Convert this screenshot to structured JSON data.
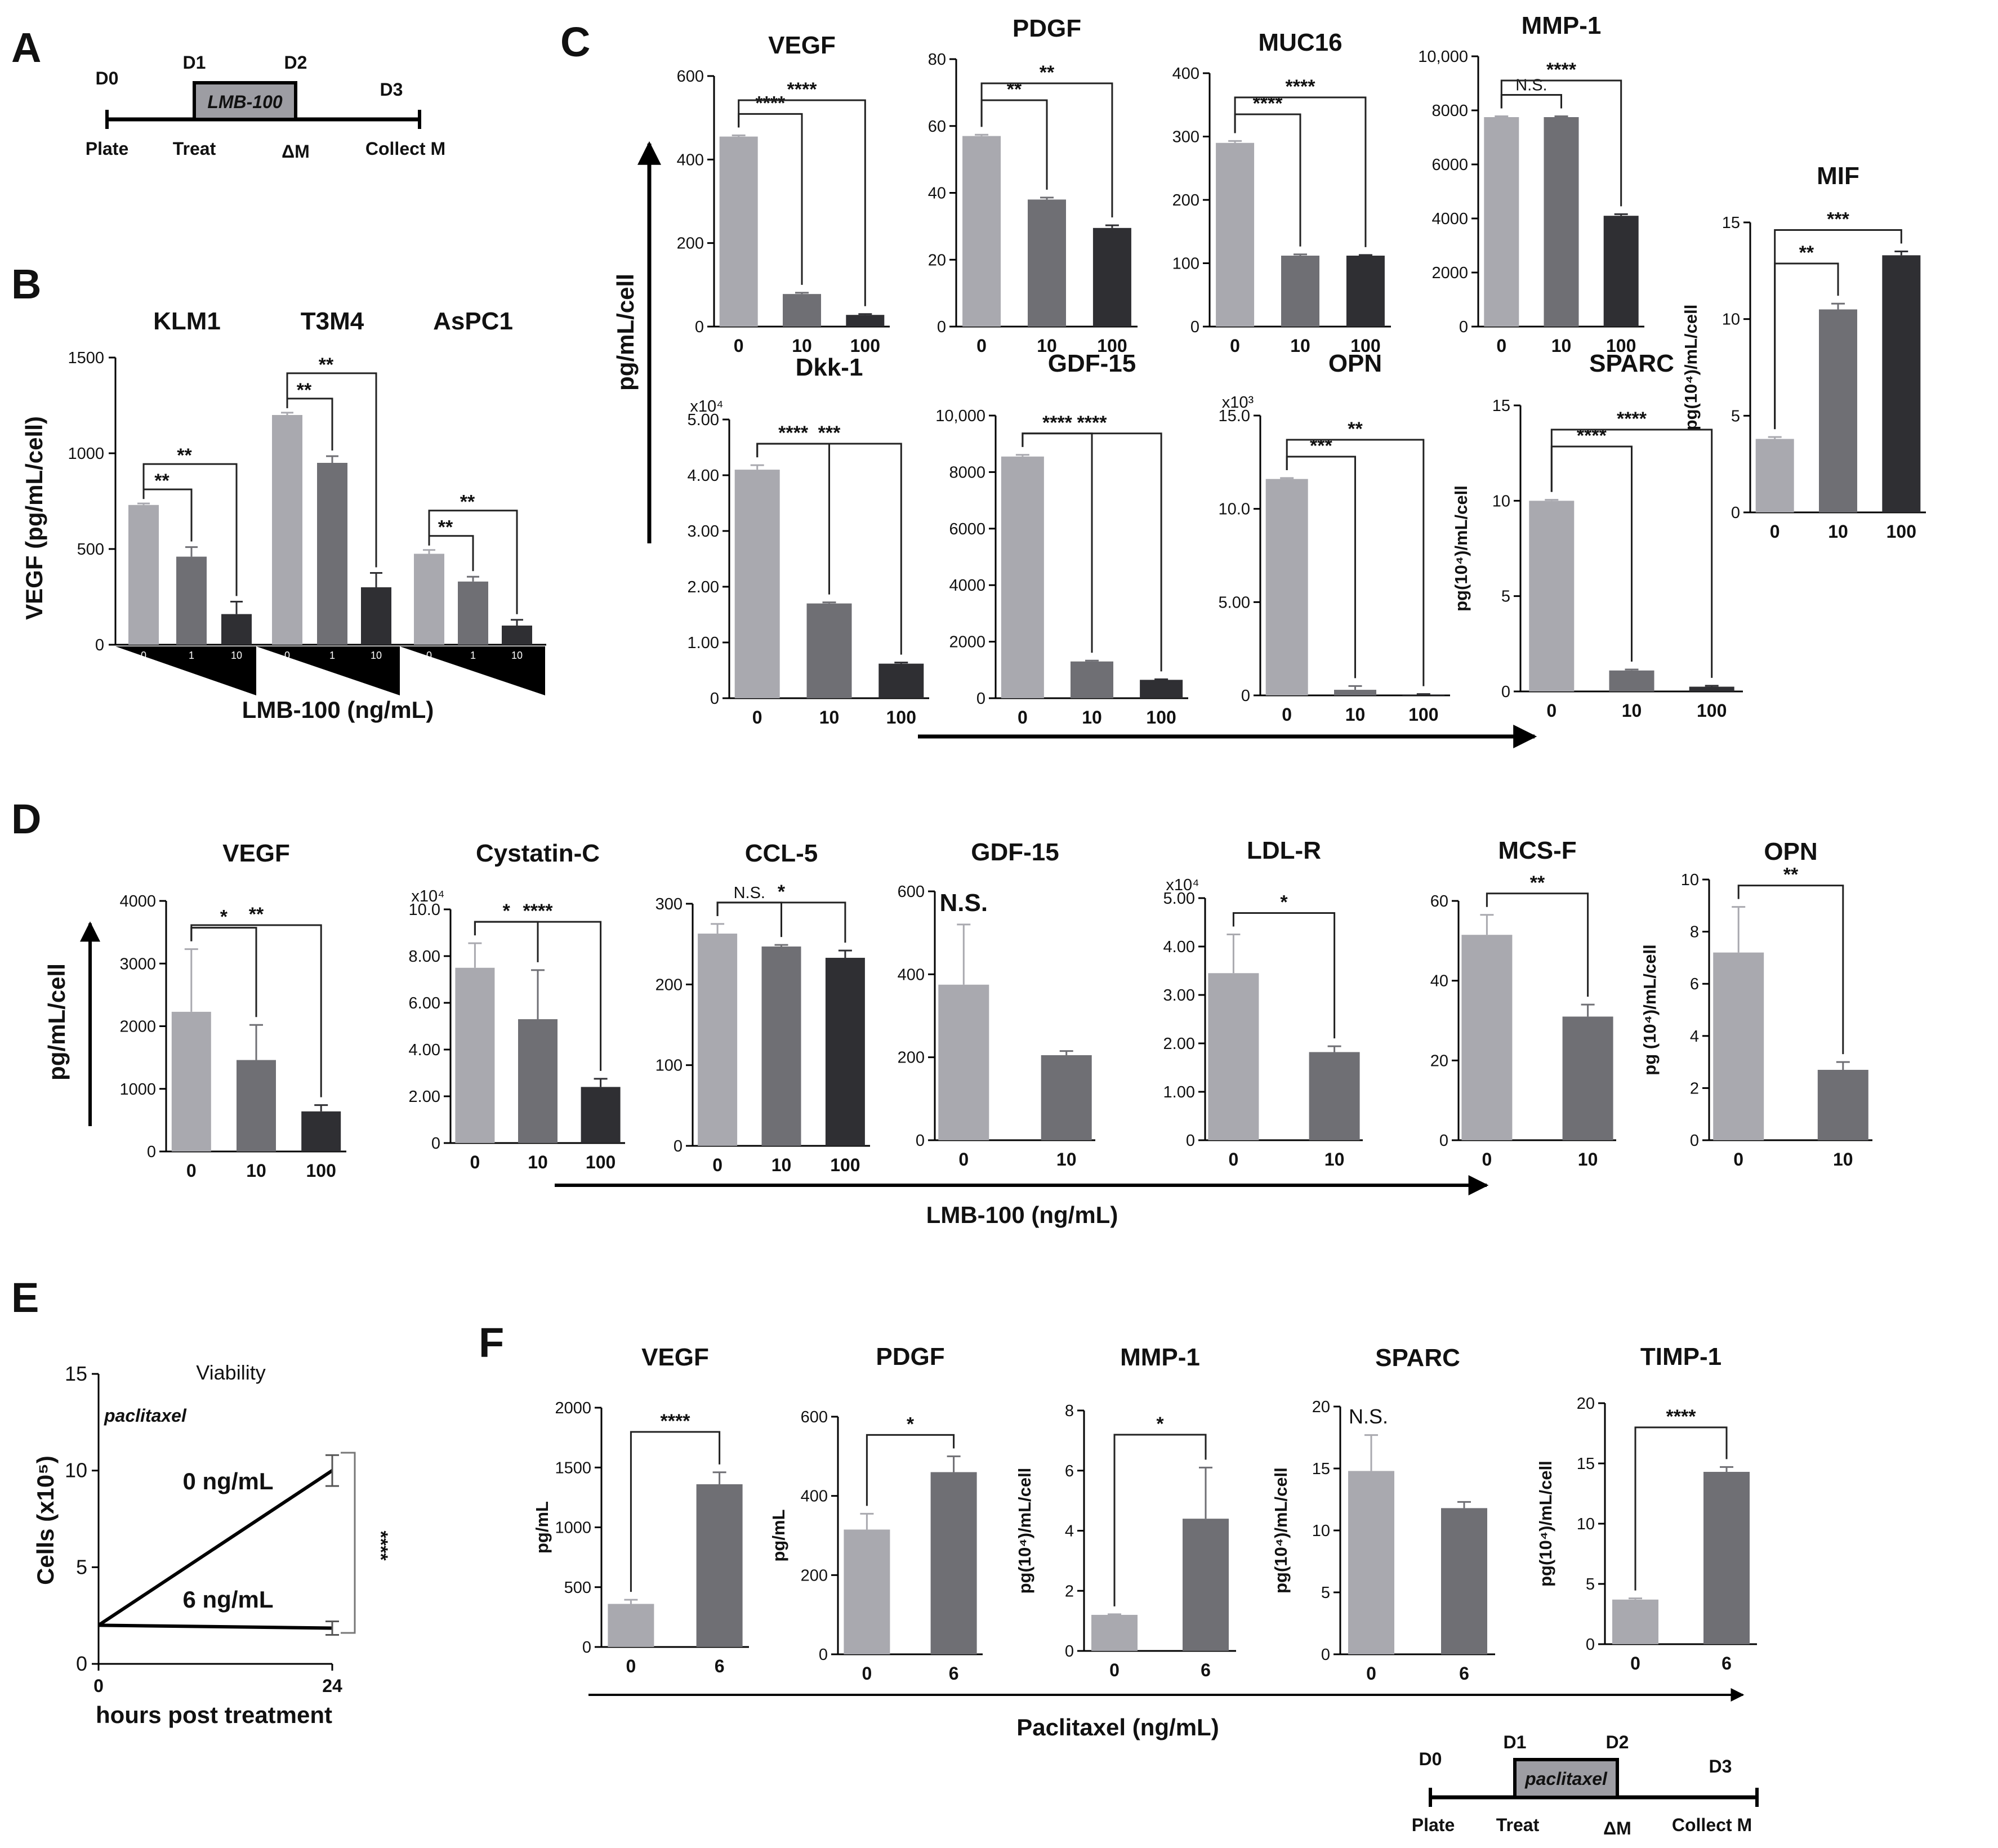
{
  "panel_letters": {
    "a": "A",
    "b": "B",
    "c": "C",
    "d": "D",
    "e": "E",
    "f": "F"
  },
  "colors": {
    "g0": "#a9a9af",
    "g1": "#6f6f74",
    "g2": "#2f2f33",
    "black": "#000000"
  },
  "timeline_a": {
    "days": [
      "D0",
      "D1",
      "D2",
      "D3"
    ],
    "labels": [
      "Plate",
      "Treat",
      "ΔM",
      "Collect M"
    ],
    "drug": "LMB-100"
  },
  "timeline_f": {
    "days": [
      "D0",
      "D1",
      "D2",
      "D3"
    ],
    "labels": [
      "Plate",
      "Treat",
      "ΔM",
      "Collect M"
    ],
    "drug": "paclitaxel"
  },
  "panel_b": {
    "ylabel": "VEGF (pg/mL/cell)",
    "xlabel": "LMB-100 (ng/mL)",
    "ylim": [
      0,
      1500
    ],
    "yticks": [
      "0",
      "500",
      "1000",
      "1500"
    ],
    "doses": [
      "0",
      "1",
      "10"
    ]
  },
  "panel_c": {
    "ylabel": "pg/mL/cell"
  },
  "panel_d": {
    "ylabel": "pg/mL/cell",
    "xlabel": "LMB-100 (ng/mL)"
  },
  "panel_f": {
    "xlabel": "Paclitaxel (ng/mL)"
  },
  "chart_data": [
    {
      "id": "B",
      "type": "bar",
      "title": "",
      "ylabel": "VEGF (pg/mL/cell)",
      "xlabel": "LMB-100 (ng/mL)",
      "ylim": [
        0,
        1500
      ],
      "groups": [
        {
          "name": "KLM1",
          "categories": [
            "0",
            "1",
            "10"
          ],
          "values": [
            730,
            460,
            160
          ],
          "errors": [
            8,
            50,
            65
          ],
          "sig": [
            {
              "from": 0,
              "to": 1,
              "label": "**"
            },
            {
              "from": 0,
              "to": 2,
              "label": "**"
            }
          ]
        },
        {
          "name": "T3M4",
          "categories": [
            "0",
            "1",
            "10"
          ],
          "values": [
            1200,
            950,
            300
          ],
          "errors": [
            12,
            35,
            75
          ],
          "sig": [
            {
              "from": 0,
              "to": 1,
              "label": "**"
            },
            {
              "from": 0,
              "to": 2,
              "label": "**"
            }
          ]
        },
        {
          "name": "AsPC1",
          "categories": [
            "0",
            "1",
            "10"
          ],
          "values": [
            475,
            330,
            100
          ],
          "errors": [
            20,
            25,
            30
          ],
          "sig": [
            {
              "from": 0,
              "to": 1,
              "label": "**"
            },
            {
              "from": 0,
              "to": 2,
              "label": "**"
            }
          ]
        }
      ]
    },
    {
      "id": "C-VEGF",
      "type": "bar",
      "title": "VEGF",
      "categories": [
        "0",
        "10",
        "100"
      ],
      "values": [
        455,
        78,
        28
      ],
      "errors": [
        3,
        3,
        2
      ],
      "ylim": [
        0,
        600
      ],
      "yticks": [
        "0",
        "200",
        "400",
        "600"
      ],
      "sig": [
        {
          "from": 0,
          "to": 1,
          "label": "****"
        },
        {
          "from": 0,
          "to": 2,
          "label": "****"
        }
      ]
    },
    {
      "id": "C-PDGF",
      "type": "bar",
      "title": "PDGF",
      "categories": [
        "0",
        "10",
        "100"
      ],
      "values": [
        57,
        38,
        29.5
      ],
      "errors": [
        0.4,
        0.6,
        0.8
      ],
      "ylim": [
        0,
        80
      ],
      "yticks": [
        "0",
        "20",
        "40",
        "60",
        "80"
      ],
      "sig": [
        {
          "from": 0,
          "to": 1,
          "label": "**"
        },
        {
          "from": 0,
          "to": 2,
          "label": "**"
        }
      ]
    },
    {
      "id": "C-MUC16",
      "type": "bar",
      "title": "MUC16",
      "categories": [
        "0",
        "10",
        "100"
      ],
      "values": [
        290,
        112,
        112
      ],
      "errors": [
        3,
        2,
        1
      ],
      "ylim": [
        0,
        400
      ],
      "yticks": [
        "0",
        "100",
        "200",
        "300",
        "400"
      ],
      "sig": [
        {
          "from": 0,
          "to": 1,
          "label": "****"
        },
        {
          "from": 0,
          "to": 2,
          "label": "****"
        }
      ]
    },
    {
      "id": "C-MMP-1",
      "type": "bar",
      "title": "MMP-1",
      "categories": [
        "0",
        "10",
        "100"
      ],
      "values": [
        7750,
        7750,
        4100
      ],
      "errors": [
        30,
        30,
        60
      ],
      "ylim": [
        0,
        10000
      ],
      "yticks": [
        "0",
        "2000",
        "4000",
        "6000",
        "8000",
        "10,000"
      ],
      "sig": [
        {
          "from": 0,
          "to": 1,
          "label": "N.S."
        },
        {
          "from": 0,
          "to": 2,
          "label": "****"
        }
      ]
    },
    {
      "id": "C-MIF",
      "type": "bar",
      "title": "MIF",
      "ylabel": "pg(10⁴)/mL/cell",
      "categories": [
        "0",
        "10",
        "100"
      ],
      "values": [
        3.8,
        10.5,
        13.3
      ],
      "errors": [
        0.1,
        0.3,
        0.2
      ],
      "ylim": [
        0,
        15
      ],
      "yticks": [
        "0",
        "5",
        "10",
        "15"
      ],
      "sig": [
        {
          "from": 0,
          "to": 1,
          "label": "**"
        },
        {
          "from": 0,
          "to": 2,
          "label": "***"
        }
      ]
    },
    {
      "id": "C-Dkk-1",
      "type": "bar",
      "title": "Dkk-1",
      "multiplier": "x10⁴",
      "categories": [
        "0",
        "10",
        "100"
      ],
      "values": [
        4.1,
        1.7,
        0.62
      ],
      "errors": [
        0.08,
        0.02,
        0.02
      ],
      "ylim": [
        0,
        5
      ],
      "yticks": [
        "0",
        "1.00",
        "2.00",
        "3.00",
        "4.00",
        "5.00"
      ],
      "sig": [
        {
          "from": 0,
          "to": 1,
          "label": "****"
        },
        {
          "from": 0,
          "to": 2,
          "label": "***"
        }
      ]
    },
    {
      "id": "C-GDF-15",
      "type": "bar",
      "title": "GDF-15",
      "categories": [
        "0",
        "10",
        "100"
      ],
      "values": [
        8550,
        1300,
        650
      ],
      "errors": [
        60,
        30,
        20
      ],
      "ylim": [
        0,
        10000
      ],
      "yticks": [
        "0",
        "2000",
        "4000",
        "6000",
        "8000",
        "10,000"
      ],
      "sig": [
        {
          "from": 0,
          "to": 1,
          "label": "****"
        },
        {
          "from": 0,
          "to": 2,
          "label": "****"
        }
      ]
    },
    {
      "id": "C-OPN",
      "type": "bar",
      "title": "OPN",
      "multiplier": "x10³",
      "categories": [
        "0",
        "10",
        "100"
      ],
      "values": [
        11.6,
        0.3,
        0.05
      ],
      "errors": [
        0.05,
        0.2,
        0.02
      ],
      "ylim": [
        0,
        15
      ],
      "yticks": [
        "0",
        "5.00",
        "10.0",
        "15.0"
      ],
      "sig": [
        {
          "from": 0,
          "to": 1,
          "label": "***"
        },
        {
          "from": 0,
          "to": 2,
          "label": "**"
        }
      ]
    },
    {
      "id": "C-SPARC",
      "type": "bar",
      "title": "SPARC",
      "ylabel": "pg(10⁴)/mL/cell",
      "categories": [
        "0",
        "10",
        "100"
      ],
      "values": [
        10,
        1.1,
        0.25
      ],
      "errors": [
        0.05,
        0.05,
        0.05
      ],
      "ylim": [
        0,
        15
      ],
      "yticks": [
        "0",
        "5",
        "10",
        "15"
      ],
      "sig": [
        {
          "from": 0,
          "to": 1,
          "label": "****"
        },
        {
          "from": 0,
          "to": 2,
          "label": "****"
        }
      ]
    },
    {
      "id": "D-VEGF",
      "type": "bar",
      "title": "VEGF",
      "categories": [
        "0",
        "10",
        "100"
      ],
      "values": [
        2230,
        1460,
        640
      ],
      "errors": [
        1000,
        560,
        100
      ],
      "ylim": [
        0,
        4000
      ],
      "yticks": [
        "0",
        "1000",
        "2000",
        "3000",
        "4000"
      ],
      "sig": [
        {
          "from": 0,
          "to": 1,
          "label": "*"
        },
        {
          "from": 0,
          "to": 2,
          "label": "**"
        }
      ]
    },
    {
      "id": "D-Cystatin-C",
      "type": "bar",
      "title": "Cystatin-C",
      "multiplier": "x10⁴",
      "categories": [
        "0",
        "10",
        "100"
      ],
      "values": [
        7.5,
        5.3,
        2.4
      ],
      "errors": [
        1.05,
        2.1,
        0.35
      ],
      "ylim": [
        0,
        10
      ],
      "yticks": [
        "0",
        "2.00",
        "4.00",
        "6.00",
        "8.00",
        "10.0"
      ],
      "sig": [
        {
          "from": 0,
          "to": 1,
          "label": "*"
        },
        {
          "from": 0,
          "to": 2,
          "label": "****"
        }
      ]
    },
    {
      "id": "D-CCL-5",
      "type": "bar",
      "title": "CCL-5",
      "categories": [
        "0",
        "10",
        "100"
      ],
      "values": [
        263,
        247,
        233
      ],
      "errors": [
        12,
        2,
        9
      ],
      "ylim": [
        0,
        300
      ],
      "yticks": [
        "0",
        "100",
        "200",
        "300"
      ],
      "sig": [
        {
          "from": 0,
          "to": 1,
          "label": "N.S."
        },
        {
          "from": 0,
          "to": 2,
          "label": "*"
        }
      ]
    },
    {
      "id": "D-GDF-15",
      "type": "bar",
      "title": "GDF-15",
      "categories": [
        "0",
        "10"
      ],
      "values": [
        375,
        205
      ],
      "errors": [
        145,
        10
      ],
      "ylim": [
        0,
        600
      ],
      "yticks": [
        "0",
        "200",
        "400",
        "600"
      ],
      "sig": [
        {
          "from": 0,
          "to": 1,
          "label": "N.S."
        }
      ]
    },
    {
      "id": "D-LDL-R",
      "type": "bar",
      "title": "LDL-R",
      "multiplier": "x10⁴",
      "categories": [
        "0",
        "10"
      ],
      "values": [
        3.45,
        1.82
      ],
      "errors": [
        0.8,
        0.12
      ],
      "ylim": [
        0,
        5
      ],
      "yticks": [
        "0",
        "1.00",
        "2.00",
        "3.00",
        "4.00",
        "5.00"
      ],
      "sig": [
        {
          "from": 0,
          "to": 1,
          "label": "*"
        }
      ]
    },
    {
      "id": "D-MCS-F",
      "type": "bar",
      "title": "MCS-F",
      "categories": [
        "0",
        "10"
      ],
      "values": [
        51.5,
        31
      ],
      "errors": [
        5,
        3
      ],
      "ylim": [
        0,
        60
      ],
      "yticks": [
        "0",
        "20",
        "40",
        "60"
      ],
      "sig": [
        {
          "from": 0,
          "to": 1,
          "label": "**"
        }
      ]
    },
    {
      "id": "D-OPN",
      "type": "bar",
      "title": "OPN",
      "ylabel": "pg (10⁴)/mL/cell",
      "categories": [
        "0",
        "10"
      ],
      "values": [
        7.2,
        2.7
      ],
      "errors": [
        1.75,
        0.3
      ],
      "ylim": [
        0,
        10
      ],
      "yticks": [
        "0",
        "2",
        "4",
        "6",
        "8",
        "10"
      ],
      "sig": [
        {
          "from": 0,
          "to": 1,
          "label": "**"
        }
      ]
    },
    {
      "id": "E",
      "type": "line",
      "title": "Viability",
      "subtitle": "paclitaxel",
      "xlabel": "hours post treatment",
      "ylabel": "Cells (x10⁵)",
      "x": [
        0,
        24
      ],
      "xticks": [
        "0",
        "24"
      ],
      "ylim": [
        0,
        15
      ],
      "yticks": [
        "0",
        "5",
        "10",
        "15"
      ],
      "series": [
        {
          "name": "0 ng/mL",
          "values": [
            2,
            10
          ],
          "errors": [
            0,
            0.8
          ]
        },
        {
          "name": "6 ng/mL",
          "values": [
            2,
            1.85
          ],
          "errors": [
            0,
            0.35
          ]
        }
      ],
      "sig": "****"
    },
    {
      "id": "F-VEGF",
      "type": "bar",
      "title": "VEGF",
      "ylabel": "pg/mL",
      "categories": [
        "0",
        "6"
      ],
      "values": [
        360,
        1360
      ],
      "errors": [
        35,
        100
      ],
      "ylim": [
        0,
        2000
      ],
      "yticks": [
        "0",
        "500",
        "1000",
        "1500",
        "2000"
      ],
      "sig": [
        {
          "from": 0,
          "to": 1,
          "label": "****"
        }
      ]
    },
    {
      "id": "F-PDGF",
      "type": "bar",
      "title": "PDGF",
      "ylabel": "pg/mL",
      "categories": [
        "0",
        "6"
      ],
      "values": [
        315,
        460
      ],
      "errors": [
        40,
        40
      ],
      "ylim": [
        0,
        600
      ],
      "yticks": [
        "0",
        "200",
        "400",
        "600"
      ],
      "sig": [
        {
          "from": 0,
          "to": 1,
          "label": "*"
        }
      ]
    },
    {
      "id": "F-MMP-1",
      "type": "bar",
      "title": "MMP-1",
      "ylabel": "pg(10⁴)/mL/cell",
      "categories": [
        "0",
        "6"
      ],
      "values": [
        1.2,
        4.4
      ],
      "errors": [
        0.02,
        1.7
      ],
      "ylim": [
        0,
        8
      ],
      "yticks": [
        "0",
        "2",
        "4",
        "6",
        "8"
      ],
      "sig": [
        {
          "from": 0,
          "to": 1,
          "label": "*"
        }
      ]
    },
    {
      "id": "F-SPARC",
      "type": "bar",
      "title": "SPARC",
      "ylabel": "pg(10⁴)/mL/cell",
      "categories": [
        "0",
        "6"
      ],
      "values": [
        14.8,
        11.8
      ],
      "errors": [
        2.9,
        0.5
      ],
      "ylim": [
        0,
        20
      ],
      "yticks": [
        "0",
        "5",
        "10",
        "15",
        "20"
      ],
      "sig": [
        {
          "from": 0,
          "to": 1,
          "label": "N.S."
        }
      ]
    },
    {
      "id": "F-TIMP-1",
      "type": "bar",
      "title": "TIMP-1",
      "ylabel": "pg(10⁴)/mL/cell",
      "categories": [
        "0",
        "6"
      ],
      "values": [
        3.7,
        14.3
      ],
      "errors": [
        0.1,
        0.4
      ],
      "ylim": [
        0,
        20
      ],
      "yticks": [
        "0",
        "5",
        "10",
        "15",
        "20"
      ],
      "sig": [
        {
          "from": 0,
          "to": 1,
          "label": "****"
        }
      ]
    }
  ]
}
